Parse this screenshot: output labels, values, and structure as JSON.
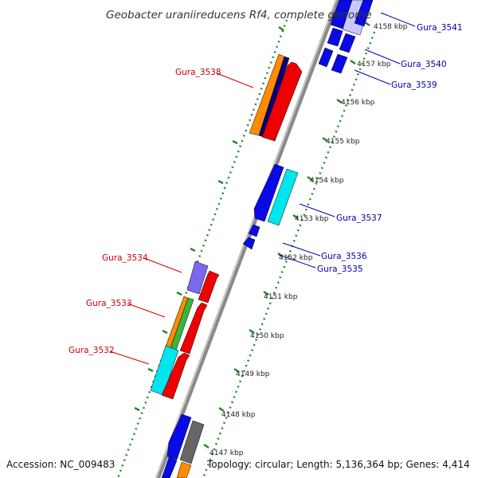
{
  "title": "Geobacter uraniireducens Rf4, complete genome",
  "footer": {
    "accession": "Accession: NC_009483",
    "topology": "Topology: circular; Length: 5,136,364 bp; Genes: 4,414"
  },
  "ticks": [
    {
      "label": "4147 kbp"
    },
    {
      "label": "4148 kbp"
    },
    {
      "label": "4149 kbp"
    },
    {
      "label": "4150 kbp"
    },
    {
      "label": "4151 kbp"
    },
    {
      "label": "4152 kbp"
    },
    {
      "label": "4153 kbp"
    },
    {
      "label": "4154 kbp"
    },
    {
      "label": "4155 kbp"
    },
    {
      "label": "4156 kbp"
    },
    {
      "label": "4157 kbp"
    },
    {
      "label": "4158 kbp"
    }
  ],
  "gene_labels": {
    "left": [
      {
        "text": "Gura_3538",
        "color": "#cc0000"
      },
      {
        "text": "Gura_3534",
        "color": "#cc0000"
      },
      {
        "text": "Gura_3533",
        "color": "#cc0000"
      },
      {
        "text": "Gura_3532",
        "color": "#cc0000"
      }
    ],
    "right": [
      {
        "text": "Gura_3541",
        "color": "#0000aa"
      },
      {
        "text": "Gura_3540",
        "color": "#0000aa"
      },
      {
        "text": "Gura_3539",
        "color": "#0000aa"
      },
      {
        "text": "Gura_3537",
        "color": "#0000aa"
      },
      {
        "text": "Gura_3536",
        "color": "#0000aa"
      },
      {
        "text": "Gura_3535",
        "color": "#0000aa"
      }
    ]
  },
  "colors": {
    "backbone": "#8a8a8a",
    "tick_dots": "#228b22",
    "blue": "#0a0ae6",
    "red": "#ee0000",
    "orange": "#ff8c00",
    "navy": "#000080",
    "cyan": "#00e5ee",
    "purple": "#7b68ee",
    "green": "#3cb43c",
    "gray": "#666666",
    "lightblue": "#c8c8ff"
  }
}
